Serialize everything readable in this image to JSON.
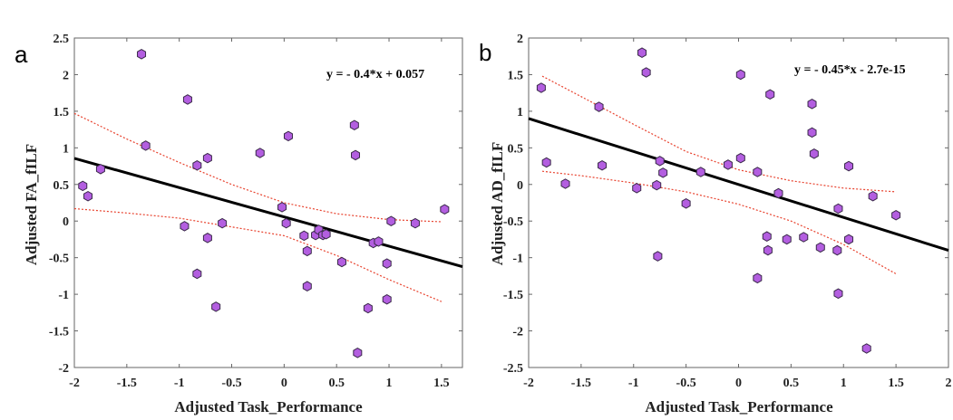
{
  "chart_data": [
    {
      "type": "scatter",
      "panel_label": "a",
      "equation": "y = - 0.4*x + 0.057",
      "xlabel": "Adjusted Task_Performance",
      "ylabel": "Adjusted FA_fILF",
      "xlim": [
        -2,
        1.7
      ],
      "ylim": [
        -2,
        2.5
      ],
      "xticks": [
        "-2",
        "-1.5",
        "-1",
        "-0.5",
        "0",
        "0.5",
        "1",
        "1.5"
      ],
      "yticks": [
        "2.5",
        "2",
        "1.5",
        "1",
        "0.5",
        "0",
        "-0.5",
        "-1",
        "-1.5",
        "-2"
      ],
      "grid": false,
      "fit": {
        "slope": -0.4,
        "intercept": 0.057
      },
      "ci_upper": [
        [
          -2,
          1.47
        ],
        [
          -1.5,
          1.12
        ],
        [
          -1,
          0.8
        ],
        [
          -0.5,
          0.5
        ],
        [
          0,
          0.25
        ],
        [
          0.5,
          0.1
        ],
        [
          1,
          0.02
        ],
        [
          1.5,
          -0.01
        ]
      ],
      "ci_lower": [
        [
          -2,
          0.17
        ],
        [
          -1.5,
          0.11
        ],
        [
          -1,
          0.04
        ],
        [
          -0.5,
          -0.08
        ],
        [
          0,
          -0.2
        ],
        [
          0.5,
          -0.47
        ],
        [
          1,
          -0.8
        ],
        [
          1.5,
          -1.1
        ]
      ],
      "points": [
        [
          -1.92,
          0.48
        ],
        [
          -1.87,
          0.34
        ],
        [
          -1.75,
          0.71
        ],
        [
          -1.36,
          2.28
        ],
        [
          -1.32,
          1.03
        ],
        [
          -0.95,
          -0.07
        ],
        [
          -0.92,
          1.66
        ],
        [
          -0.83,
          -0.72
        ],
        [
          -0.83,
          0.76
        ],
        [
          -0.73,
          -0.23
        ],
        [
          -0.73,
          0.86
        ],
        [
          -0.65,
          -1.17
        ],
        [
          -0.59,
          -0.03
        ],
        [
          -0.23,
          0.93
        ],
        [
          -0.02,
          0.19
        ],
        [
          0.02,
          -0.03
        ],
        [
          0.04,
          1.16
        ],
        [
          0.19,
          -0.2
        ],
        [
          0.22,
          -0.41
        ],
        [
          0.22,
          -0.89
        ],
        [
          0.3,
          -0.19
        ],
        [
          0.33,
          -0.12
        ],
        [
          0.37,
          -0.19
        ],
        [
          0.4,
          -0.18
        ],
        [
          0.55,
          -0.56
        ],
        [
          0.67,
          1.31
        ],
        [
          0.68,
          0.9
        ],
        [
          0.7,
          -1.8
        ],
        [
          0.8,
          -1.19
        ],
        [
          0.85,
          -0.3
        ],
        [
          0.9,
          -0.28
        ],
        [
          0.98,
          -0.58
        ],
        [
          0.98,
          -1.07
        ],
        [
          1.02,
          0.0
        ],
        [
          1.25,
          -0.03
        ],
        [
          1.53,
          0.16
        ]
      ]
    },
    {
      "type": "scatter",
      "panel_label": "b",
      "equation": "y = - 0.45*x - 2.7e-15",
      "xlabel": "Adjusted Task_Performance",
      "ylabel": "Adjusted AD_fILF",
      "xlim": [
        -2,
        2
      ],
      "ylim": [
        -2.5,
        2
      ],
      "xticks": [
        "-2",
        "-1.5",
        "-1",
        "-0.5",
        "0",
        "0.5",
        "1",
        "1.5",
        "2"
      ],
      "yticks": [
        "2",
        "1.5",
        "1",
        "0.5",
        "0",
        "-0.5",
        "-1",
        "-1.5",
        "-2",
        "-2.5"
      ],
      "grid": false,
      "fit": {
        "slope": -0.45,
        "intercept": 0
      },
      "ci_upper": [
        [
          -1.87,
          1.48
        ],
        [
          -1.5,
          1.2
        ],
        [
          -1,
          0.82
        ],
        [
          -0.5,
          0.45
        ],
        [
          0,
          0.2
        ],
        [
          0.5,
          0.05
        ],
        [
          1,
          -0.05
        ],
        [
          1.5,
          -0.1
        ]
      ],
      "ci_lower": [
        [
          -1.87,
          0.18
        ],
        [
          -1.5,
          0.12
        ],
        [
          -1,
          0.02
        ],
        [
          -0.5,
          -0.1
        ],
        [
          0,
          -0.27
        ],
        [
          0.5,
          -0.5
        ],
        [
          1,
          -0.82
        ],
        [
          1.5,
          -1.22
        ]
      ],
      "points": [
        [
          -1.88,
          1.32
        ],
        [
          -1.83,
          0.3
        ],
        [
          -1.65,
          0.01
        ],
        [
          -1.33,
          1.06
        ],
        [
          -1.3,
          0.26
        ],
        [
          -0.97,
          -0.05
        ],
        [
          -0.92,
          1.8
        ],
        [
          -0.88,
          1.53
        ],
        [
          -0.78,
          -0.01
        ],
        [
          -0.77,
          -0.98
        ],
        [
          -0.75,
          0.32
        ],
        [
          -0.72,
          0.16
        ],
        [
          -0.5,
          -0.26
        ],
        [
          -0.36,
          0.17
        ],
        [
          -0.1,
          0.27
        ],
        [
          0.02,
          0.36
        ],
        [
          0.02,
          1.5
        ],
        [
          0.18,
          0.17
        ],
        [
          0.18,
          -1.28
        ],
        [
          0.27,
          -0.71
        ],
        [
          0.28,
          -0.9
        ],
        [
          0.3,
          1.23
        ],
        [
          0.38,
          -0.12
        ],
        [
          0.46,
          -0.75
        ],
        [
          0.62,
          -0.72
        ],
        [
          0.7,
          1.1
        ],
        [
          0.7,
          0.71
        ],
        [
          0.72,
          0.42
        ],
        [
          0.78,
          -0.86
        ],
        [
          0.94,
          -0.9
        ],
        [
          0.95,
          -0.33
        ],
        [
          0.95,
          -1.49
        ],
        [
          1.05,
          0.25
        ],
        [
          1.05,
          -0.75
        ],
        [
          1.22,
          -2.24
        ],
        [
          1.28,
          -0.16
        ],
        [
          1.5,
          -0.42
        ]
      ]
    }
  ],
  "colors": {
    "marker_fill": "#b35ee0",
    "marker_stroke": "#3a2a4a",
    "fit_line": "#000000",
    "ci_line": "#e8432f",
    "axis": "#666666"
  }
}
